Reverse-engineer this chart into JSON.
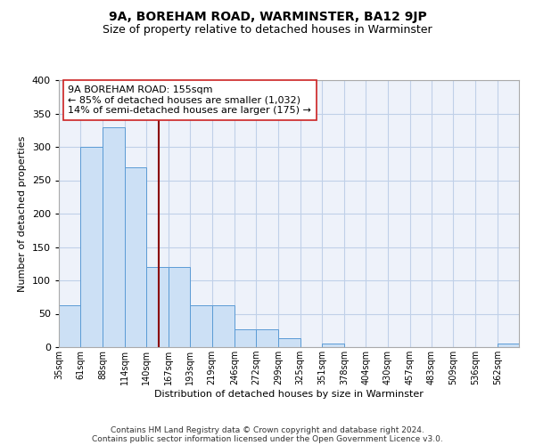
{
  "title": "9A, BOREHAM ROAD, WARMINSTER, BA12 9JP",
  "subtitle": "Size of property relative to detached houses in Warminster",
  "xlabel": "Distribution of detached houses by size in Warminster",
  "ylabel": "Number of detached properties",
  "bar_heights": [
    63,
    300,
    330,
    270,
    120,
    120,
    63,
    63,
    27,
    27,
    13,
    0,
    5,
    0,
    0,
    0,
    0,
    0,
    0,
    0,
    5
  ],
  "bin_labels": [
    "35sqm",
    "61sqm",
    "88sqm",
    "114sqm",
    "140sqm",
    "167sqm",
    "193sqm",
    "219sqm",
    "246sqm",
    "272sqm",
    "299sqm",
    "325sqm",
    "351sqm",
    "378sqm",
    "404sqm",
    "430sqm",
    "457sqm",
    "483sqm",
    "509sqm",
    "536sqm",
    "562sqm"
  ],
  "bin_edges": [
    35,
    61,
    88,
    114,
    140,
    167,
    193,
    219,
    246,
    272,
    299,
    325,
    351,
    378,
    404,
    430,
    457,
    483,
    509,
    536,
    562,
    588
  ],
  "bar_color": "#cce0f5",
  "bar_edge_color": "#5b9bd5",
  "vline_x": 155,
  "vline_color": "#8b0000",
  "annotation_line1": "9A BOREHAM ROAD: 155sqm",
  "annotation_line2": "← 85% of detached houses are smaller (1,032)",
  "annotation_line3": "14% of semi-detached houses are larger (175) →",
  "ylim": [
    0,
    400
  ],
  "yticks": [
    0,
    50,
    100,
    150,
    200,
    250,
    300,
    350,
    400
  ],
  "grid_color": "#c0d0e8",
  "bg_color": "#eef2fa",
  "footer_line1": "Contains HM Land Registry data © Crown copyright and database right 2024.",
  "footer_line2": "Contains public sector information licensed under the Open Government Licence v3.0.",
  "title_fontsize": 10,
  "subtitle_fontsize": 9,
  "annotation_fontsize": 8,
  "footer_fontsize": 6.5,
  "tick_fontsize": 7,
  "ylabel_fontsize": 8,
  "xlabel_fontsize": 8
}
